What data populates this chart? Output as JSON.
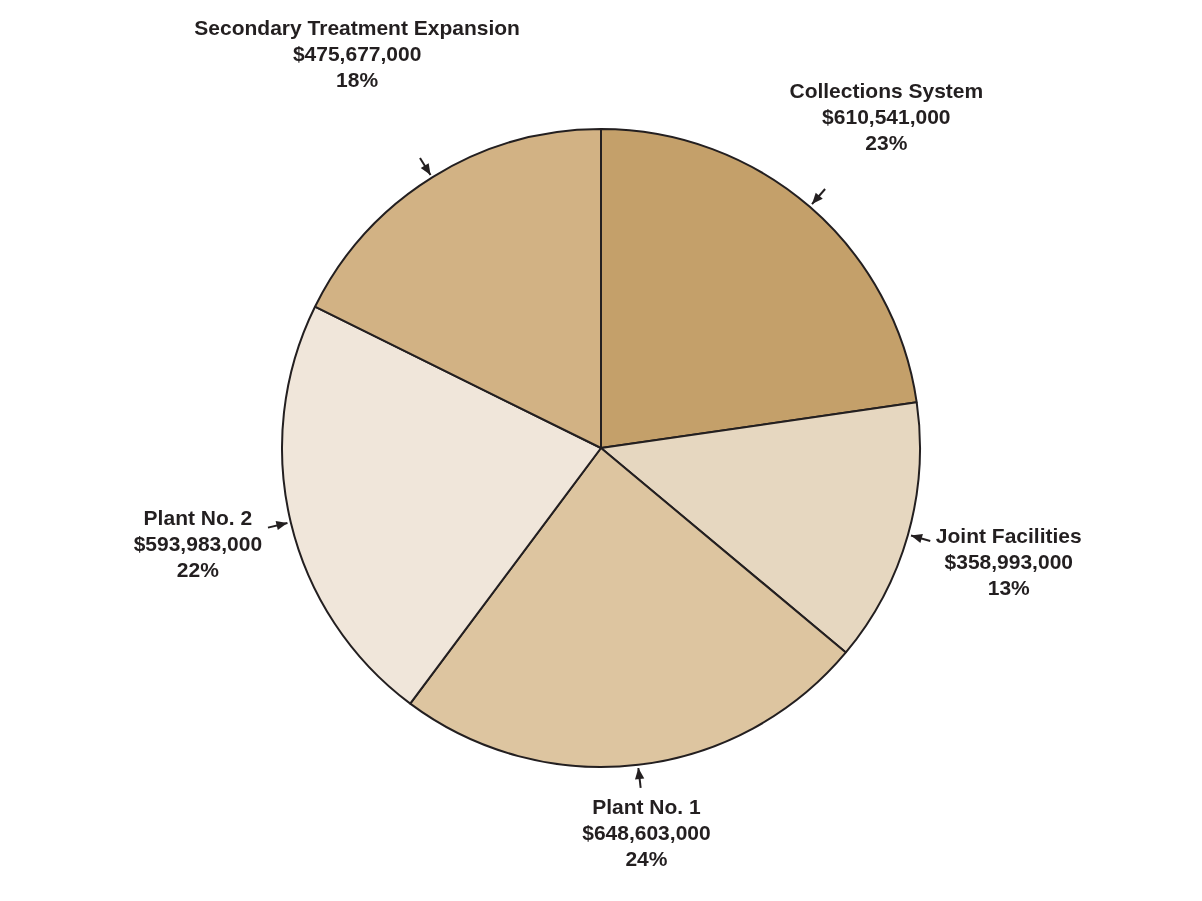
{
  "chart_data": {
    "type": "pie",
    "categories": [
      "Collections System",
      "Joint Facilities",
      "Plant No. 1",
      "Plant No. 2",
      "Secondary Treatment Expansion"
    ],
    "values": [
      610541000,
      358993000,
      648603000,
      593983000,
      475677000
    ],
    "value_labels": [
      "$610,541,000\n23%",
      "$358,993,000\n13%",
      "$648,603,000\n24%",
      "$593,983,000\n22%",
      "$475,677,000\n18%"
    ],
    "colors": [
      "#c4a06a",
      "#e6d7c0",
      "#ddc5a0",
      "#f0e6da",
      "#d2b284"
    ]
  }
}
